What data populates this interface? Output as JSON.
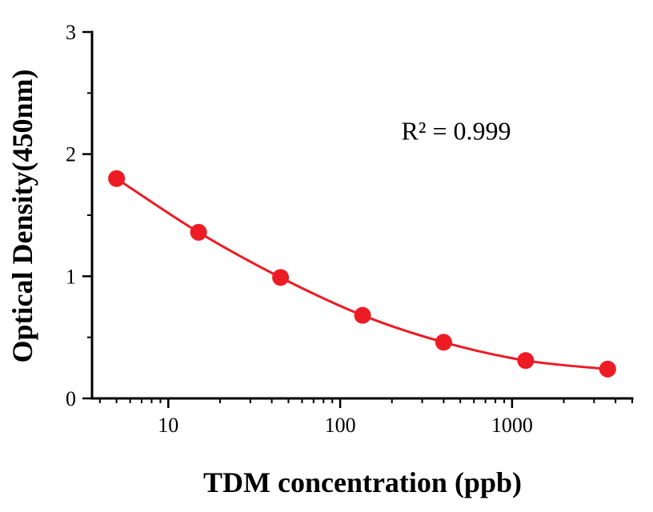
{
  "chart_data": {
    "type": "scatter",
    "x": [
      5,
      15,
      45,
      135,
      400,
      1200,
      3600
    ],
    "y": [
      1.8,
      1.36,
      0.99,
      0.68,
      0.46,
      0.31,
      0.24
    ],
    "xlabel": "TDM concentration (ppb)",
    "ylabel": "Optical Density(450nm)",
    "annotation": "R² = 0.999",
    "x_scale": "log",
    "xlim": [
      3.6,
      5000
    ],
    "ylim": [
      0,
      3
    ],
    "x_ticks": [
      10,
      100,
      1000
    ],
    "x_tick_labels": [
      "10",
      "100",
      "1000"
    ],
    "y_ticks": [
      0,
      1,
      2,
      3
    ],
    "y_tick_labels": [
      "0",
      "1",
      "2",
      "3"
    ],
    "y_minor_step": 0.5,
    "grid": false,
    "legend": "none",
    "marker_color": "#ed1c24",
    "line_color": "#ed1c24",
    "axis_color": "#000000",
    "curve_style": "smooth-fit-through-points"
  }
}
